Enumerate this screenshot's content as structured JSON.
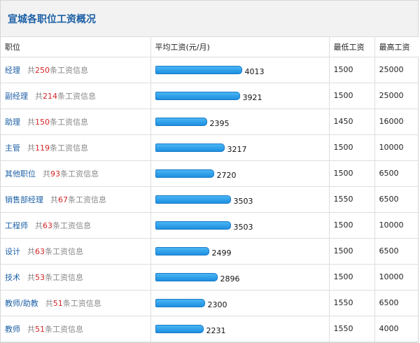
{
  "title": "宣城各职位工资概况",
  "columns": {
    "position": "职位",
    "avg": "平均工资(元/月)",
    "min": "最低工资",
    "max": "最高工资"
  },
  "count_prefix": "共",
  "count_suffix": "条工资信息",
  "bar_max_value": 4013,
  "bar_color": "#1e8fe0",
  "rows": [
    {
      "job": "经理",
      "count": "250",
      "avg": 4013,
      "min": "1500",
      "max": "25000"
    },
    {
      "job": "副经理",
      "count": "214",
      "avg": 3921,
      "min": "1500",
      "max": "25000"
    },
    {
      "job": "助理",
      "count": "150",
      "avg": 2395,
      "min": "1450",
      "max": "16000"
    },
    {
      "job": "主管",
      "count": "119",
      "avg": 3217,
      "min": "1500",
      "max": "10000"
    },
    {
      "job": "其他职位",
      "count": "93",
      "avg": 2720,
      "min": "1500",
      "max": "6500"
    },
    {
      "job": "销售部经理",
      "count": "67",
      "avg": 3503,
      "min": "1550",
      "max": "6500"
    },
    {
      "job": "工程师",
      "count": "63",
      "avg": 3503,
      "min": "1500",
      "max": "10000"
    },
    {
      "job": "设计",
      "count": "63",
      "avg": 2499,
      "min": "1500",
      "max": "6500"
    },
    {
      "job": "技术",
      "count": "53",
      "avg": 2896,
      "min": "1500",
      "max": "10000"
    },
    {
      "job": "教师/助教",
      "count": "51",
      "avg": 2300,
      "min": "1550",
      "max": "6500"
    },
    {
      "job": "教师",
      "count": "51",
      "avg": 2231,
      "min": "1550",
      "max": "4000"
    }
  ]
}
